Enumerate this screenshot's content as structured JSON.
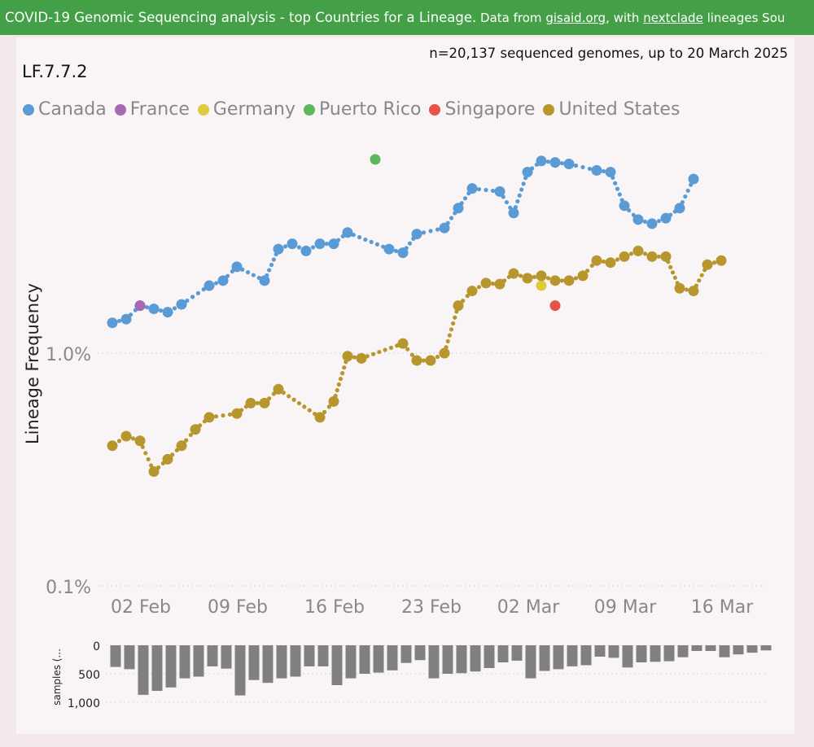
{
  "banner": {
    "text_main": "COVID-19 Genomic Sequencing analysis - top Countries for a Lineage.",
    "text_small_1": " Data from ",
    "link_1": "gisaid.org",
    "text_small_2": ", with ",
    "link_2": "nextclade",
    "text_small_3": " lineages Sou"
  },
  "subtitle": "n=20,137 sequenced genomes, up to 20 March 2025",
  "lineage_title": "LF.7.7.2",
  "colors": {
    "Canada": "#5b9bd5",
    "France": "#a667b3",
    "Germany": "#dccc3c",
    "Puerto Rico": "#5cb85c",
    "Singapore": "#e5534b",
    "United States": "#b7962e",
    "bars": "#808080"
  },
  "chart_data": [
    {
      "type": "line",
      "title": "",
      "ylabel": "Lineage Frequency",
      "xlabel": "",
      "yscale": "log",
      "ylim": [
        0.1,
        7.5
      ],
      "ytick_values": [
        0.1,
        1.0
      ],
      "ytick_labels": [
        "0.1%",
        "1.0%"
      ],
      "xtick_day_indices": [
        1,
        8,
        15,
        22,
        29,
        36,
        43
      ],
      "xtick_labels": [
        "02 Feb",
        "09 Feb",
        "16 Feb",
        "23 Feb",
        "02 Mar",
        "09 Mar",
        "16 Mar"
      ],
      "grid": "horizontal dotted",
      "legend_placement": "top-left",
      "legend": [
        "Canada",
        "France",
        "Germany",
        "Puerto Rico",
        "Singapore",
        "United States"
      ],
      "series": [
        {
          "name": "Canada",
          "points": [
            [
              0,
              1.35
            ],
            [
              1,
              1.4
            ],
            [
              2,
              1.6
            ],
            [
              3,
              1.55
            ],
            [
              4,
              1.5
            ],
            [
              5,
              1.62
            ],
            [
              7,
              1.95
            ],
            [
              8,
              2.05
            ],
            [
              9,
              2.35
            ],
            [
              11,
              2.05
            ],
            [
              12,
              2.8
            ],
            [
              13,
              2.95
            ],
            [
              14,
              2.75
            ],
            [
              15,
              2.95
            ],
            [
              16,
              2.95
            ],
            [
              17,
              3.3
            ],
            [
              20,
              2.8
            ],
            [
              21,
              2.7
            ],
            [
              22,
              3.25
            ],
            [
              24,
              3.45
            ],
            [
              25,
              4.2
            ],
            [
              26,
              5.1
            ],
            [
              28,
              4.95
            ],
            [
              29,
              4.0
            ],
            [
              30,
              6.0
            ],
            [
              31,
              6.7
            ],
            [
              32,
              6.6
            ],
            [
              33,
              6.5
            ],
            [
              35,
              6.1
            ],
            [
              36,
              6.0
            ],
            [
              37,
              4.3
            ],
            [
              38,
              3.75
            ],
            [
              39,
              3.6
            ],
            [
              40,
              3.8
            ],
            [
              41,
              4.2
            ],
            [
              42,
              5.6
            ]
          ]
        },
        {
          "name": "France",
          "points": [
            [
              2,
              1.6
            ]
          ]
        },
        {
          "name": "Germany",
          "points": [
            [
              31,
              1.95
            ]
          ]
        },
        {
          "name": "Puerto Rico",
          "points": [
            [
              19,
              6.8
            ]
          ]
        },
        {
          "name": "Singapore",
          "points": [
            [
              32,
              1.6
            ]
          ]
        },
        {
          "name": "United States",
          "points": [
            [
              0,
              0.4
            ],
            [
              1,
              0.44
            ],
            [
              2,
              0.42
            ],
            [
              3,
              0.31
            ],
            [
              4,
              0.35
            ],
            [
              5,
              0.4
            ],
            [
              6,
              0.47
            ],
            [
              7,
              0.53
            ],
            [
              9,
              0.55
            ],
            [
              10,
              0.61
            ],
            [
              11,
              0.61
            ],
            [
              12,
              0.7
            ],
            [
              15,
              0.53
            ],
            [
              16,
              0.62
            ],
            [
              17,
              0.97
            ],
            [
              18,
              0.95
            ],
            [
              21,
              1.1
            ],
            [
              22,
              0.93
            ],
            [
              23,
              0.93
            ],
            [
              24,
              1.0
            ],
            [
              25,
              1.6
            ],
            [
              26,
              1.85
            ],
            [
              27,
              2.0
            ],
            [
              28,
              1.98
            ],
            [
              29,
              2.2
            ],
            [
              30,
              2.1
            ],
            [
              31,
              2.15
            ],
            [
              32,
              2.05
            ],
            [
              33,
              2.05
            ],
            [
              34,
              2.15
            ],
            [
              35,
              2.5
            ],
            [
              36,
              2.45
            ],
            [
              37,
              2.6
            ],
            [
              38,
              2.75
            ],
            [
              39,
              2.6
            ],
            [
              40,
              2.6
            ],
            [
              41,
              1.9
            ],
            [
              42,
              1.85
            ],
            [
              43,
              2.4
            ],
            [
              44,
              2.5
            ]
          ]
        }
      ]
    },
    {
      "type": "bar",
      "ylabel": "samples (...",
      "ylim": [
        0,
        1000
      ],
      "ytick_labels": [
        "0",
        "500",
        "1,000"
      ],
      "ytick_values": [
        0,
        500,
        1000
      ],
      "x_day_indices": [
        0,
        1,
        2,
        3,
        4,
        5,
        6,
        7,
        8,
        9,
        10,
        11,
        12,
        13,
        14,
        15,
        16,
        17,
        18,
        19,
        20,
        21,
        22,
        23,
        24,
        25,
        26,
        27,
        28,
        29,
        30,
        31,
        32,
        33,
        34,
        35,
        36,
        37,
        38,
        39,
        40,
        41,
        42,
        43,
        44,
        45,
        46,
        47
      ],
      "values": [
        380,
        420,
        870,
        800,
        740,
        580,
        550,
        370,
        410,
        880,
        610,
        660,
        580,
        550,
        370,
        370,
        700,
        580,
        500,
        480,
        440,
        310,
        260,
        580,
        500,
        490,
        460,
        400,
        300,
        270,
        580,
        450,
        420,
        370,
        350,
        200,
        220,
        390,
        300,
        290,
        280,
        210,
        100,
        100,
        210,
        160,
        130,
        90
      ]
    }
  ]
}
